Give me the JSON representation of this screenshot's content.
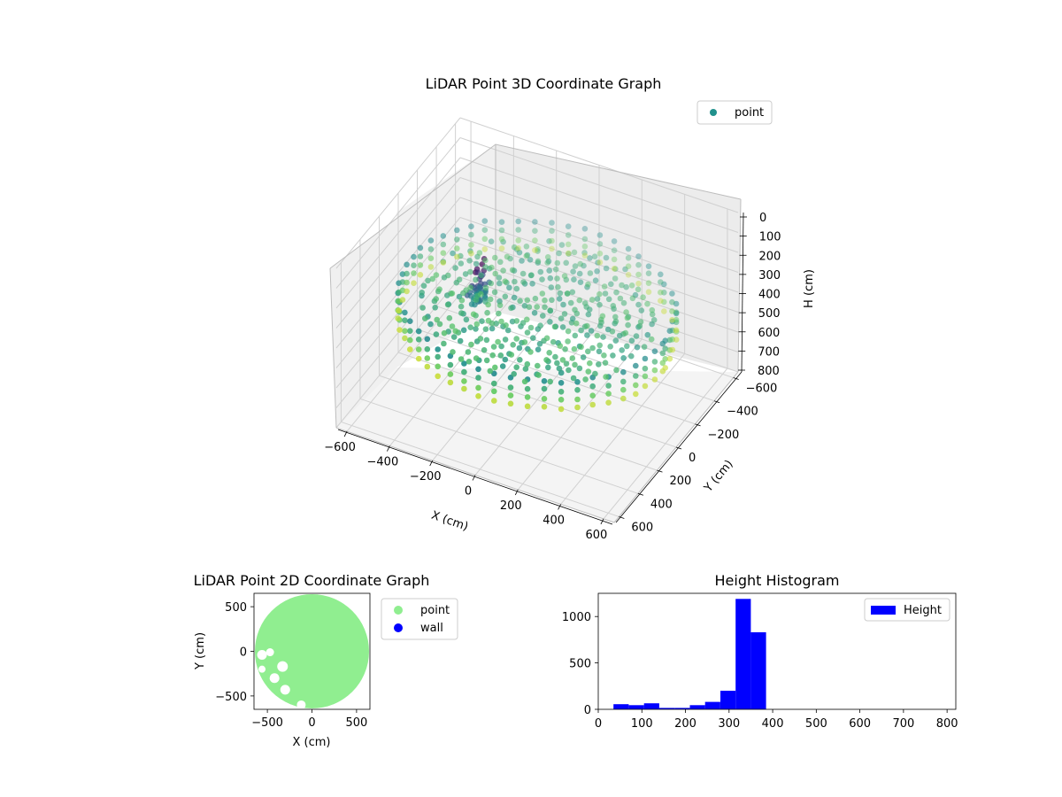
{
  "chart_data": [
    {
      "id": "scatter3d",
      "type": "scatter",
      "subtype": "3d",
      "title": "LiDAR Point 3D Coordinate Graph",
      "xlabel": "X (cm)",
      "ylabel": "Y (cm)",
      "zlabel": "H (cm)",
      "xlim": [
        -650,
        650
      ],
      "ylim": [
        -650,
        650
      ],
      "zlim": [
        0,
        800
      ],
      "z_inverted": true,
      "xticks": [
        "−600",
        "−400",
        "−200",
        "0",
        "200",
        "400",
        "600"
      ],
      "yticks": [
        "−600",
        "−400",
        "−200",
        "0",
        "200",
        "400",
        "600"
      ],
      "zticks": [
        "0",
        "100",
        "200",
        "300",
        "400",
        "500",
        "600",
        "700",
        "800"
      ],
      "legend": [
        {
          "label": "point",
          "color": "#21918c"
        }
      ],
      "legend_position": "top-right",
      "colormap": "viridis",
      "description_of_cloud": "approximate ring of points of radius ~600 cm at height ~300-450 cm, inner floor points, and a tall column near center-left",
      "ring_radius": 600,
      "ring_height_range": [
        300,
        460
      ],
      "inner_height_range": [
        320,
        380
      ],
      "column_center": [
        -220,
        120
      ],
      "column_height_range": [
        150,
        320
      ]
    },
    {
      "id": "scatter2d",
      "type": "scatter",
      "title": "LiDAR Point 2D Coordinate Graph",
      "xlabel": "X (cm)",
      "ylabel": "Y (cm)",
      "xlim": [
        -650,
        650
      ],
      "ylim": [
        -650,
        650
      ],
      "xticks": [
        "−500",
        "0",
        "500"
      ],
      "yticks": [
        "500",
        "0",
        "−500"
      ],
      "legend": [
        {
          "label": "point",
          "color": "#90ee90"
        },
        {
          "label": "wall",
          "color": "#0000ff"
        }
      ],
      "legend_position": "outside-right",
      "cloud_radius": 640
    },
    {
      "id": "histogram",
      "type": "bar",
      "subtype": "histogram",
      "title": "Height Histogram",
      "xlabel": "",
      "ylabel": "",
      "xlim": [
        0,
        820
      ],
      "ylim": [
        0,
        1250
      ],
      "xticks": [
        "0",
        "100",
        "200",
        "300",
        "400",
        "500",
        "600",
        "700",
        "800"
      ],
      "yticks": [
        "0",
        "500",
        "1000"
      ],
      "legend": [
        {
          "label": "Height",
          "color": "#0000ff"
        }
      ],
      "legend_position": "top-right",
      "bin_width": 35,
      "bins": [
        {
          "x0": 35,
          "value": 55
        },
        {
          "x0": 70,
          "value": 45
        },
        {
          "x0": 105,
          "value": 65
        },
        {
          "x0": 140,
          "value": 15
        },
        {
          "x0": 175,
          "value": 15
        },
        {
          "x0": 210,
          "value": 45
        },
        {
          "x0": 245,
          "value": 80
        },
        {
          "x0": 280,
          "value": 200
        },
        {
          "x0": 315,
          "value": 1190
        },
        {
          "x0": 350,
          "value": 830
        }
      ]
    }
  ]
}
